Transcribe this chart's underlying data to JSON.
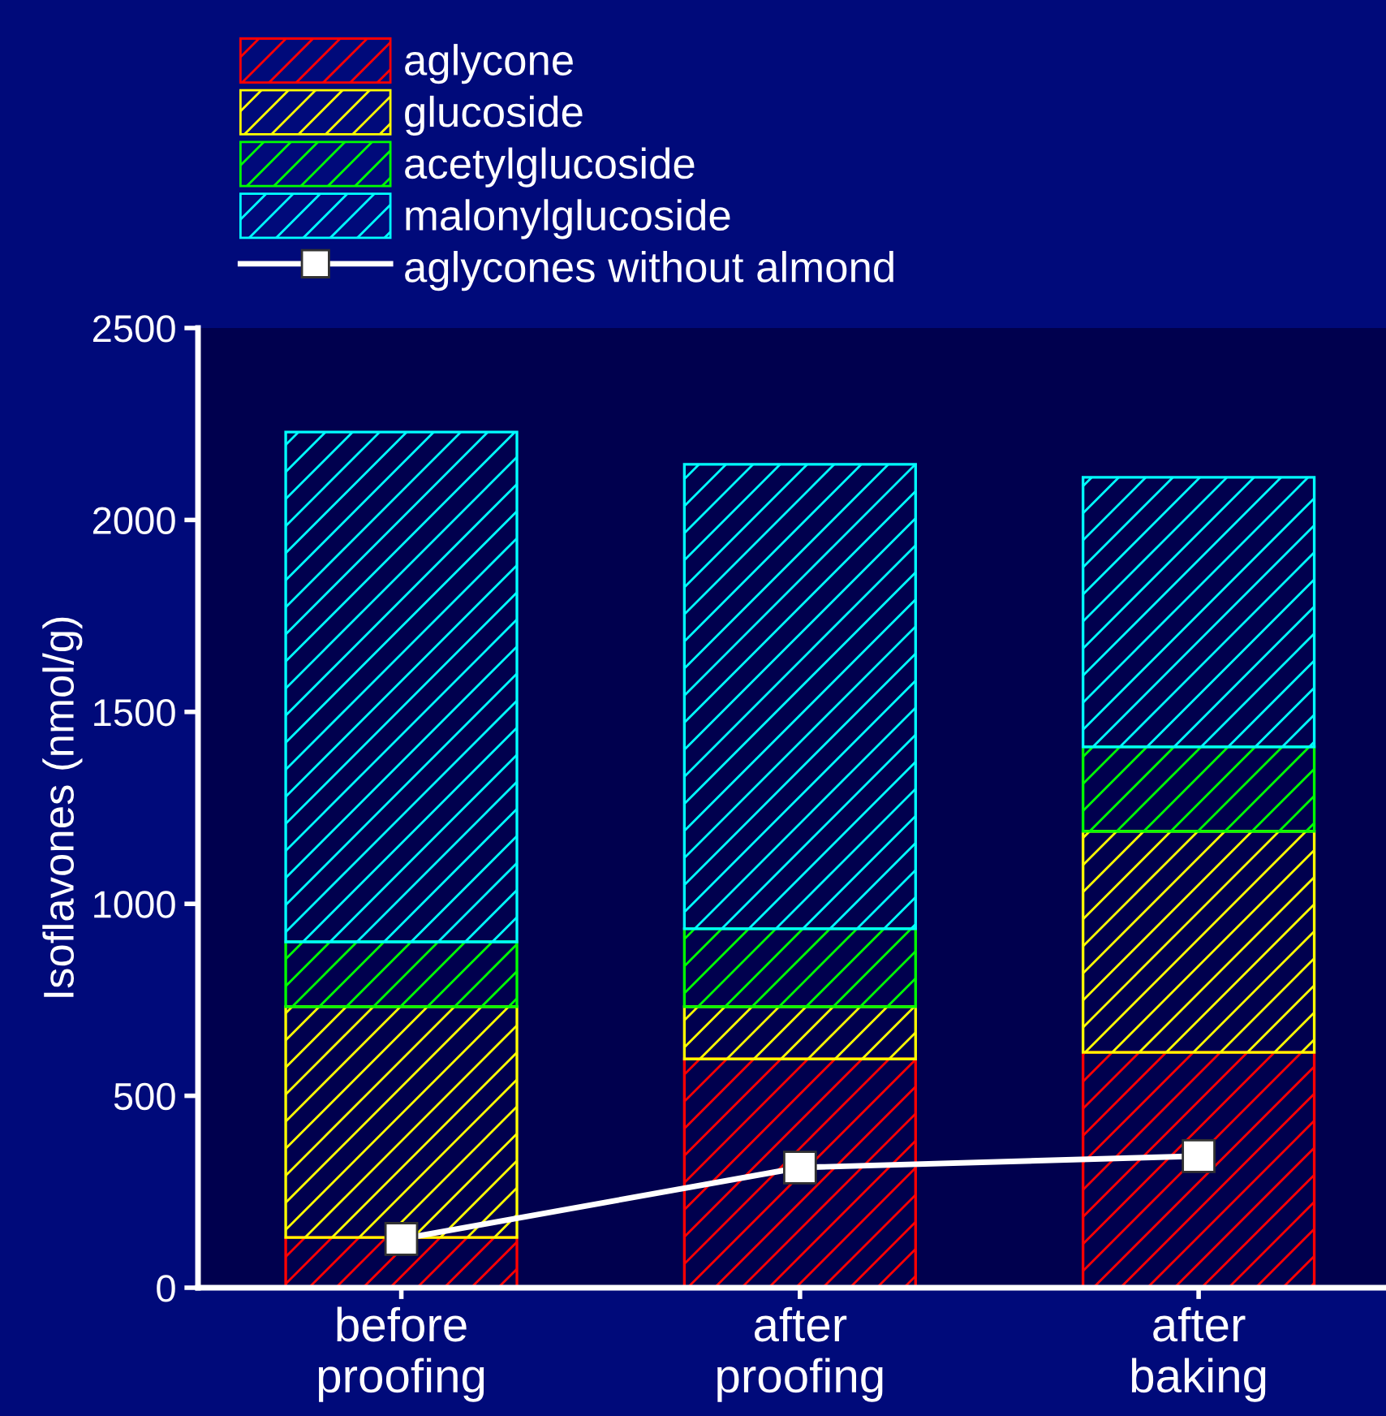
{
  "chart_data": {
    "type": "bar",
    "stacked": true,
    "ylabel": "Isoflavones (nmol/g)",
    "categories": [
      "before\nproofing",
      "after\nproofing",
      "after\nbaking"
    ],
    "series": [
      {
        "name": "aglycone",
        "color": "#ff0000",
        "values": [
          131,
          596,
          613
        ]
      },
      {
        "name": "glucoside",
        "color": "#ffff00",
        "values": [
          601,
          136,
          576
        ]
      },
      {
        "name": "acetylglucoside",
        "color": "#00ff00",
        "values": [
          169,
          203,
          220
        ]
      },
      {
        "name": "malonylglucoside",
        "color": "#00ffff",
        "values": [
          1328,
          1210,
          702
        ]
      },
      {
        "name": "aglycones without almond",
        "type": "line",
        "color": "#ffffff",
        "values": [
          127,
          313,
          343
        ],
        "marker": "square",
        "line_style": "solid"
      }
    ],
    "ylim": [
      0,
      2500
    ],
    "yticks": [
      0,
      500,
      1000,
      1500,
      2000,
      2500
    ],
    "grid": false,
    "legend": "top"
  }
}
